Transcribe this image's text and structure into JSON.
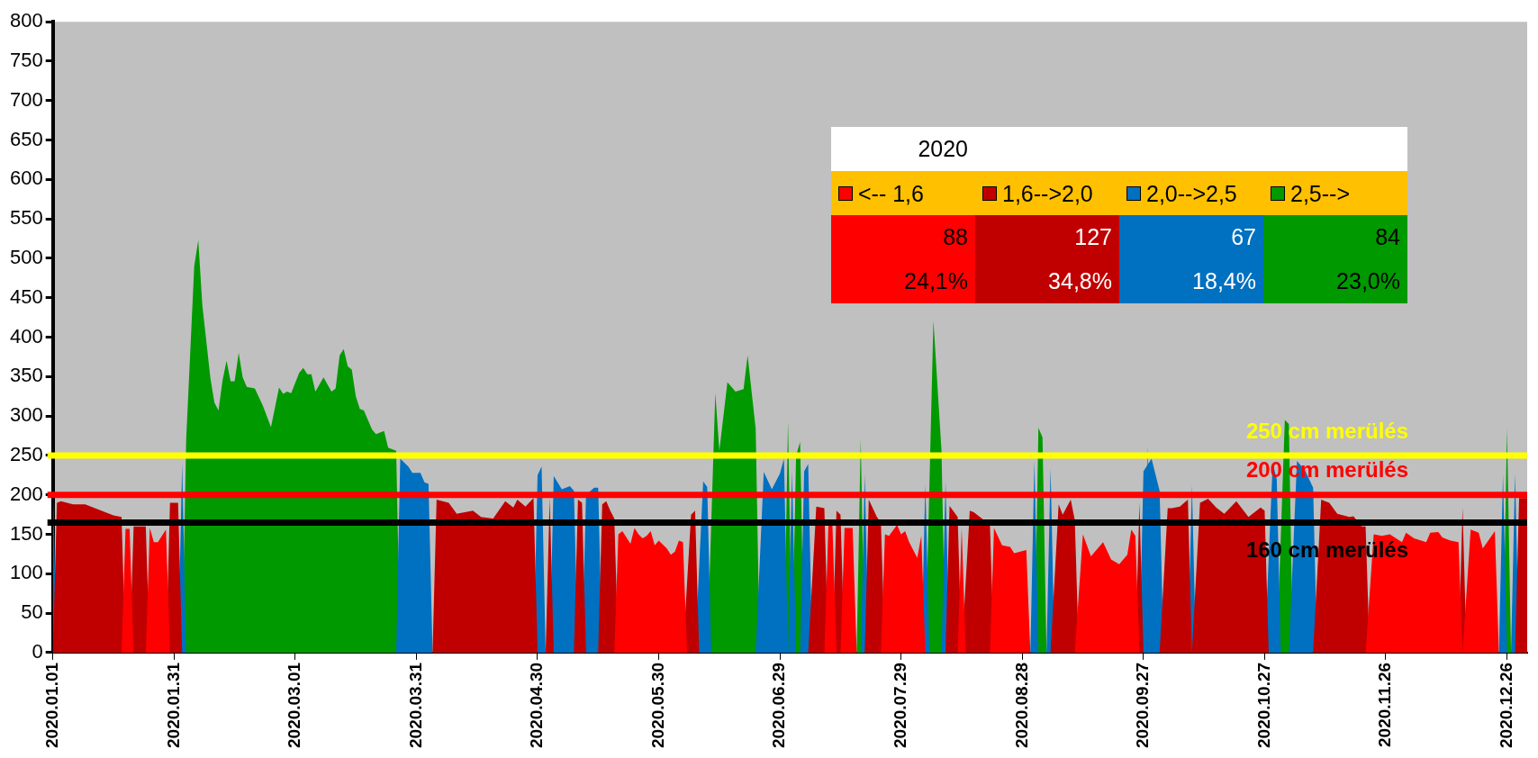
{
  "chart_data": {
    "type": "area",
    "legend": "top right",
    "legend_title": "2020",
    "grid": false,
    "xlim": [
      "2020-01-01",
      "2020-12-31"
    ],
    "xticks": [
      {
        "value": "2020-01-01",
        "label": "2020.01.01"
      },
      {
        "value": "2020-01-31",
        "label": "2020.01.31"
      },
      {
        "value": "2020-03-01",
        "label": "2020.03.01"
      },
      {
        "value": "2020-03-31",
        "label": "2020.03.31"
      },
      {
        "value": "2020-04-30",
        "label": "2020.04.30"
      },
      {
        "value": "2020-05-30",
        "label": "2020.05.30"
      },
      {
        "value": "2020-06-29",
        "label": "2020.06.29"
      },
      {
        "value": "2020-07-29",
        "label": "2020.07.29"
      },
      {
        "value": "2020-08-28",
        "label": "2020.08.28"
      },
      {
        "value": "2020-09-27",
        "label": "2020.09.27"
      },
      {
        "value": "2020-10-27",
        "label": "2020.10.27"
      },
      {
        "value": "2020-11-26",
        "label": "2020.11.26"
      },
      {
        "value": "2020-12-26",
        "label": "2020.12.26"
      }
    ],
    "ylim": [
      0,
      800
    ],
    "yticks": [
      0,
      50,
      100,
      150,
      200,
      250,
      300,
      350,
      400,
      450,
      500,
      550,
      600,
      650,
      700,
      750,
      800
    ],
    "ref_lines": [
      {
        "axis": "y",
        "value": 250,
        "label": "250 cm merülés",
        "color": "#ffff00"
      },
      {
        "axis": "y",
        "value": 200,
        "label": "200 cm merülés",
        "color": "#ff0000"
      },
      {
        "axis": "y",
        "value": 165,
        "label": "160 cm merülés",
        "color": "#000000"
      }
    ],
    "annotations": [
      "88",
      "127",
      "67",
      "84",
      "24,1%",
      "34,8%",
      "18,4%",
      "23,0%"
    ],
    "series": [
      {
        "name": "<-- 1,6",
        "color": "#ff0000",
        "x": [
          "2020-01-18",
          "2020-01-19",
          "2020-01-20",
          "2020-01-21",
          "2020-01-24",
          "2020-01-25",
          "2020-01-26",
          "2020-01-27",
          "2020-01-29",
          "2020-01-30",
          "2020-05-19",
          "2020-05-20",
          "2020-05-21",
          "2020-05-23",
          "2020-05-24",
          "2020-05-25",
          "2020-05-26",
          "2020-05-27",
          "2020-05-28",
          "2020-05-29",
          "2020-05-30",
          "2020-06-01",
          "2020-06-02",
          "2020-06-03",
          "2020-06-04",
          "2020-06-05",
          "2020-06-06",
          "2020-07-10",
          "2020-07-11",
          "2020-07-12",
          "2020-07-13",
          "2020-07-14",
          "2020-07-15",
          "2020-07-17",
          "2020-07-18",
          "2020-07-24",
          "2020-07-25",
          "2020-07-26",
          "2020-07-28",
          "2020-07-29",
          "2020-07-30",
          "2020-07-31",
          "2020-08-02",
          "2020-08-03",
          "2020-08-04",
          "2020-08-12",
          "2020-08-13",
          "2020-08-14",
          "2020-08-20",
          "2020-08-21",
          "2020-08-23",
          "2020-08-25",
          "2020-08-26",
          "2020-08-29",
          "2020-08-30",
          "2020-09-10",
          "2020-09-12",
          "2020-09-14",
          "2020-09-15",
          "2020-09-17",
          "2020-09-19",
          "2020-09-21",
          "2020-09-23",
          "2020-09-24",
          "2020-09-25",
          "2020-09-26",
          "2020-11-21",
          "2020-11-23",
          "2020-11-25",
          "2020-11-27",
          "2020-11-30",
          "2020-12-01",
          "2020-12-03",
          "2020-12-06",
          "2020-12-07",
          "2020-12-09",
          "2020-12-10",
          "2020-12-12",
          "2020-12-14",
          "2020-12-15",
          "2020-12-17",
          "2020-12-19",
          "2020-12-20",
          "2020-12-23",
          "2020-12-24"
        ],
        "values": [
          0,
          157,
          157,
          0,
          0,
          158,
          140,
          140,
          156,
          0,
          0,
          150,
          154,
          138,
          158,
          150,
          145,
          148,
          154,
          136,
          142,
          132,
          124,
          128,
          142,
          140,
          0,
          0,
          161,
          161,
          0,
          0,
          158,
          158,
          0,
          0,
          150,
          148,
          162,
          150,
          154,
          140,
          120,
          148,
          0,
          0,
          158,
          0,
          0,
          158,
          136,
          134,
          126,
          130,
          0,
          0,
          150,
          122,
          128,
          140,
          118,
          112,
          124,
          156,
          148,
          0,
          0,
          150,
          148,
          150,
          140,
          152,
          145,
          140,
          152,
          153,
          146,
          142,
          140,
          0,
          156,
          152,
          132,
          154,
          0
        ]
      },
      {
        "name": "1,6-->2,0",
        "color": "#c00000",
        "x": [
          "2020-01-01",
          "2020-01-02",
          "2020-01-03",
          "2020-01-06",
          "2020-01-09",
          "2020-01-13",
          "2020-01-16",
          "2020-01-18",
          "2020-01-19",
          "2020-01-20",
          "2020-01-21",
          "2020-01-24",
          "2020-01-25",
          "2020-01-29",
          "2020-01-30",
          "2020-02-01",
          "2020-02-02",
          "2020-04-04",
          "2020-04-05",
          "2020-04-08",
          "2020-04-10",
          "2020-04-12",
          "2020-04-14",
          "2020-04-16",
          "2020-04-19",
          "2020-04-22",
          "2020-04-24",
          "2020-04-25",
          "2020-04-27",
          "2020-04-29",
          "2020-04-30",
          "2020-05-02",
          "2020-05-03",
          "2020-05-04",
          "2020-05-09",
          "2020-05-10",
          "2020-05-11",
          "2020-05-12",
          "2020-05-15",
          "2020-05-16",
          "2020-05-17",
          "2020-05-18",
          "2020-05-19",
          "2020-05-20",
          "2020-06-05",
          "2020-06-07",
          "2020-06-08",
          "2020-06-09",
          "2020-07-06",
          "2020-07-08",
          "2020-07-10",
          "2020-07-11",
          "2020-07-12",
          "2020-07-13",
          "2020-07-14",
          "2020-07-15",
          "2020-07-20",
          "2020-07-21",
          "2020-07-23",
          "2020-07-24",
          "2020-07-25",
          "2020-08-09",
          "2020-08-10",
          "2020-08-12",
          "2020-08-13",
          "2020-08-15",
          "2020-08-16",
          "2020-08-18",
          "2020-08-20",
          "2020-08-21",
          "2020-09-04",
          "2020-09-06",
          "2020-09-07",
          "2020-09-09",
          "2020-09-10",
          "2020-09-11",
          "2020-09-25",
          "2020-09-26",
          "2020-09-27",
          "2020-10-01",
          "2020-10-03",
          "2020-10-04",
          "2020-10-06",
          "2020-10-08",
          "2020-10-09",
          "2020-10-11",
          "2020-10-13",
          "2020-10-15",
          "2020-10-17",
          "2020-10-20",
          "2020-10-23",
          "2020-10-26",
          "2020-10-27",
          "2020-10-28",
          "2020-11-08",
          "2020-11-10",
          "2020-11-12",
          "2020-11-14",
          "2020-11-17",
          "2020-11-18",
          "2020-11-20",
          "2020-11-21",
          "2020-11-22",
          "2020-12-14",
          "2020-12-15",
          "2020-12-16",
          "2020-12-28",
          "2020-12-29",
          "2020-12-31"
        ],
        "values": [
          0,
          190,
          192,
          188,
          188,
          180,
          174,
          172,
          0,
          0,
          160,
          160,
          0,
          0,
          190,
          190,
          0,
          0,
          194,
          190,
          176,
          178,
          180,
          172,
          170,
          192,
          184,
          194,
          185,
          196,
          0,
          0,
          196,
          0,
          0,
          194,
          190,
          0,
          0,
          188,
          192,
          180,
          170,
          0,
          0,
          175,
          180,
          0,
          0,
          185,
          183,
          0,
          0,
          180,
          175,
          0,
          0,
          194,
          172,
          165,
          0,
          0,
          186,
          172,
          0,
          180,
          178,
          170,
          161,
          0,
          0,
          188,
          175,
          194,
          168,
          0,
          0,
          190,
          0,
          0,
          183,
          183,
          185,
          194,
          0,
          190,
          195,
          184,
          176,
          192,
          172,
          184,
          180,
          0,
          0,
          194,
          190,
          176,
          172,
          173,
          160,
          160,
          0,
          0,
          184,
          0,
          0,
          196,
          196
        ]
      },
      {
        "name": "2,0-->2,5",
        "color": "#0070c0",
        "x": [
          "2020-01-01",
          "2020-01-02",
          "2020-02-01",
          "2020-02-02",
          "2020-02-03",
          "2020-03-26",
          "2020-03-27",
          "2020-03-29",
          "2020-03-30",
          "2020-04-01",
          "2020-04-02",
          "2020-04-03",
          "2020-04-04",
          "2020-04-29",
          "2020-04-30",
          "2020-05-01",
          "2020-05-02",
          "2020-05-03",
          "2020-05-04",
          "2020-05-06",
          "2020-05-08",
          "2020-05-09",
          "2020-05-10",
          "2020-05-11",
          "2020-05-12",
          "2020-05-14",
          "2020-05-15",
          "2020-05-16",
          "2020-06-08",
          "2020-06-10",
          "2020-06-11",
          "2020-06-12",
          "2020-06-23",
          "2020-06-25",
          "2020-06-27",
          "2020-06-29",
          "2020-06-30",
          "2020-07-01",
          "2020-07-02",
          "2020-07-03",
          "2020-07-04",
          "2020-07-05",
          "2020-07-06",
          "2020-07-07",
          "2020-07-19",
          "2020-07-20",
          "2020-07-21",
          "2020-08-03",
          "2020-08-04",
          "2020-08-05",
          "2020-08-08",
          "2020-08-09",
          "2020-08-10",
          "2020-08-30",
          "2020-08-31",
          "2020-09-01",
          "2020-09-03",
          "2020-09-04",
          "2020-09-05",
          "2020-09-26",
          "2020-09-27",
          "2020-09-29",
          "2020-10-01",
          "2020-10-02",
          "2020-10-08",
          "2020-10-09",
          "2020-10-10",
          "2020-10-27",
          "2020-10-29",
          "2020-10-30",
          "2020-10-31",
          "2020-11-02",
          "2020-11-04",
          "2020-11-06",
          "2020-11-08",
          "2020-11-09",
          "2020-12-24",
          "2020-12-25",
          "2020-12-26",
          "2020-12-27",
          "2020-12-28",
          "2020-12-29"
        ],
        "values": [
          212,
          0,
          0,
          240,
          0,
          0,
          246,
          236,
          228,
          228,
          216,
          214,
          0,
          0,
          225,
          236,
          0,
          0,
          224,
          207,
          211,
          205,
          0,
          0,
          200,
          209,
          209,
          0,
          0,
          217,
          210,
          0,
          0,
          229,
          207,
          227,
          246,
          0,
          230,
          0,
          0,
          230,
          239,
          0,
          0,
          226,
          0,
          0,
          214,
          0,
          0,
          217,
          0,
          0,
          243,
          0,
          0,
          234,
          0,
          0,
          230,
          246,
          205,
          0,
          0,
          212,
          0,
          0,
          240,
          220,
          0,
          0,
          243,
          231,
          209,
          0,
          0,
          226,
          0,
          0,
          227,
          0
        ]
      },
      {
        "name": "2,5-->",
        "color": "#009900",
        "x": [
          "2020-02-02",
          "2020-02-03",
          "2020-02-05",
          "2020-02-06",
          "2020-02-07",
          "2020-02-09",
          "2020-02-10",
          "2020-02-11",
          "2020-02-12",
          "2020-02-13",
          "2020-02-14",
          "2020-02-15",
          "2020-02-16",
          "2020-02-17",
          "2020-02-18",
          "2020-02-20",
          "2020-02-22",
          "2020-02-24",
          "2020-02-26",
          "2020-02-27",
          "2020-02-28",
          "2020-02-29",
          "2020-03-02",
          "2020-03-03",
          "2020-03-04",
          "2020-03-05",
          "2020-03-06",
          "2020-03-08",
          "2020-03-10",
          "2020-03-11",
          "2020-03-12",
          "2020-03-13",
          "2020-03-14",
          "2020-03-15",
          "2020-03-16",
          "2020-03-17",
          "2020-03-18",
          "2020-03-20",
          "2020-03-21",
          "2020-03-23",
          "2020-03-24",
          "2020-03-26",
          "2020-03-27",
          "2020-06-11",
          "2020-06-13",
          "2020-06-14",
          "2020-06-16",
          "2020-06-18",
          "2020-06-20",
          "2020-06-21",
          "2020-06-23",
          "2020-06-24",
          "2020-06-30",
          "2020-07-01",
          "2020-07-02",
          "2020-07-03",
          "2020-07-04",
          "2020-07-05",
          "2020-07-18",
          "2020-07-19",
          "2020-07-20",
          "2020-08-04",
          "2020-08-06",
          "2020-08-08",
          "2020-08-09",
          "2020-08-31",
          "2020-09-01",
          "2020-09-02",
          "2020-09-03",
          "2020-09-27",
          "2020-09-28",
          "2020-09-29",
          "2020-10-30",
          "2020-11-01",
          "2020-11-02",
          "2020-11-03",
          "2020-12-25",
          "2020-12-26",
          "2020-12-27"
        ],
        "values": [
          0,
          270,
          490,
          523,
          441,
          348,
          317,
          307,
          345,
          370,
          344,
          344,
          380,
          349,
          337,
          335,
          313,
          286,
          336,
          328,
          331,
          329,
          355,
          361,
          353,
          353,
          331,
          349,
          331,
          335,
          377,
          385,
          363,
          359,
          325,
          309,
          307,
          283,
          277,
          281,
          260,
          256,
          0,
          0,
          329,
          256,
          343,
          331,
          334,
          377,
          284,
          0,
          0,
          293,
          0,
          250,
          267,
          0,
          0,
          270,
          0,
          0,
          421,
          256,
          0,
          0,
          285,
          273,
          0,
          0,
          262,
          0,
          0,
          295,
          290,
          0,
          0,
          284,
          0
        ]
      }
    ]
  }
}
